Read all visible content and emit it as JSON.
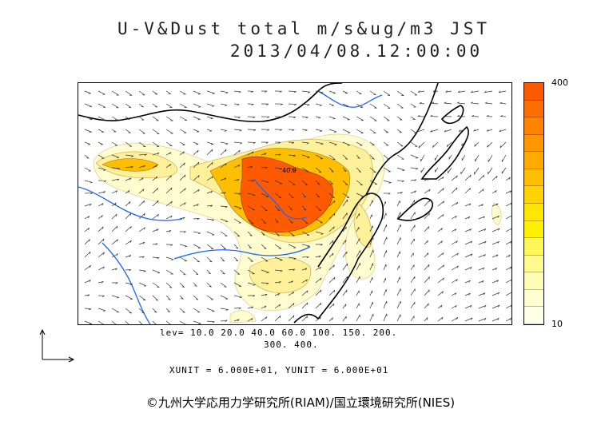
{
  "title": {
    "line1": "U-V&Dust total m/s&ug/m3 JST",
    "line2": "2013/04/08.12:00:00"
  },
  "colorbar": {
    "max_label": "400",
    "min_label": "10",
    "colors": [
      "#ff5a00",
      "#ff6e00",
      "#ff8200",
      "#ff9600",
      "#ffaa00",
      "#ffbe00",
      "#ffd200",
      "#ffe600",
      "#fff000",
      "#fff65a",
      "#fffa8c",
      "#fffcb4",
      "#fffdd2",
      "#fffee6"
    ]
  },
  "levels": {
    "line1": "lev= 10.0 20.0 40.0 60.0 100. 150. 200.",
    "line2": "300. 400."
  },
  "units": "XUNIT = 6.000E+01, YUNIT = 6.000E+01",
  "copyright": "©九州大学応用力学研究所(RIAM)/国立環境研究所(NIES)",
  "map_colors": {
    "land_border": "#000000",
    "river": "#1a66ff",
    "heavy_dust": "#ff5a00",
    "medium_dust": "#ffbe00",
    "light_dust": "#fff09a",
    "faint_dust": "#fffcd0",
    "arrow": "#333333"
  },
  "map_label": "40.0"
}
